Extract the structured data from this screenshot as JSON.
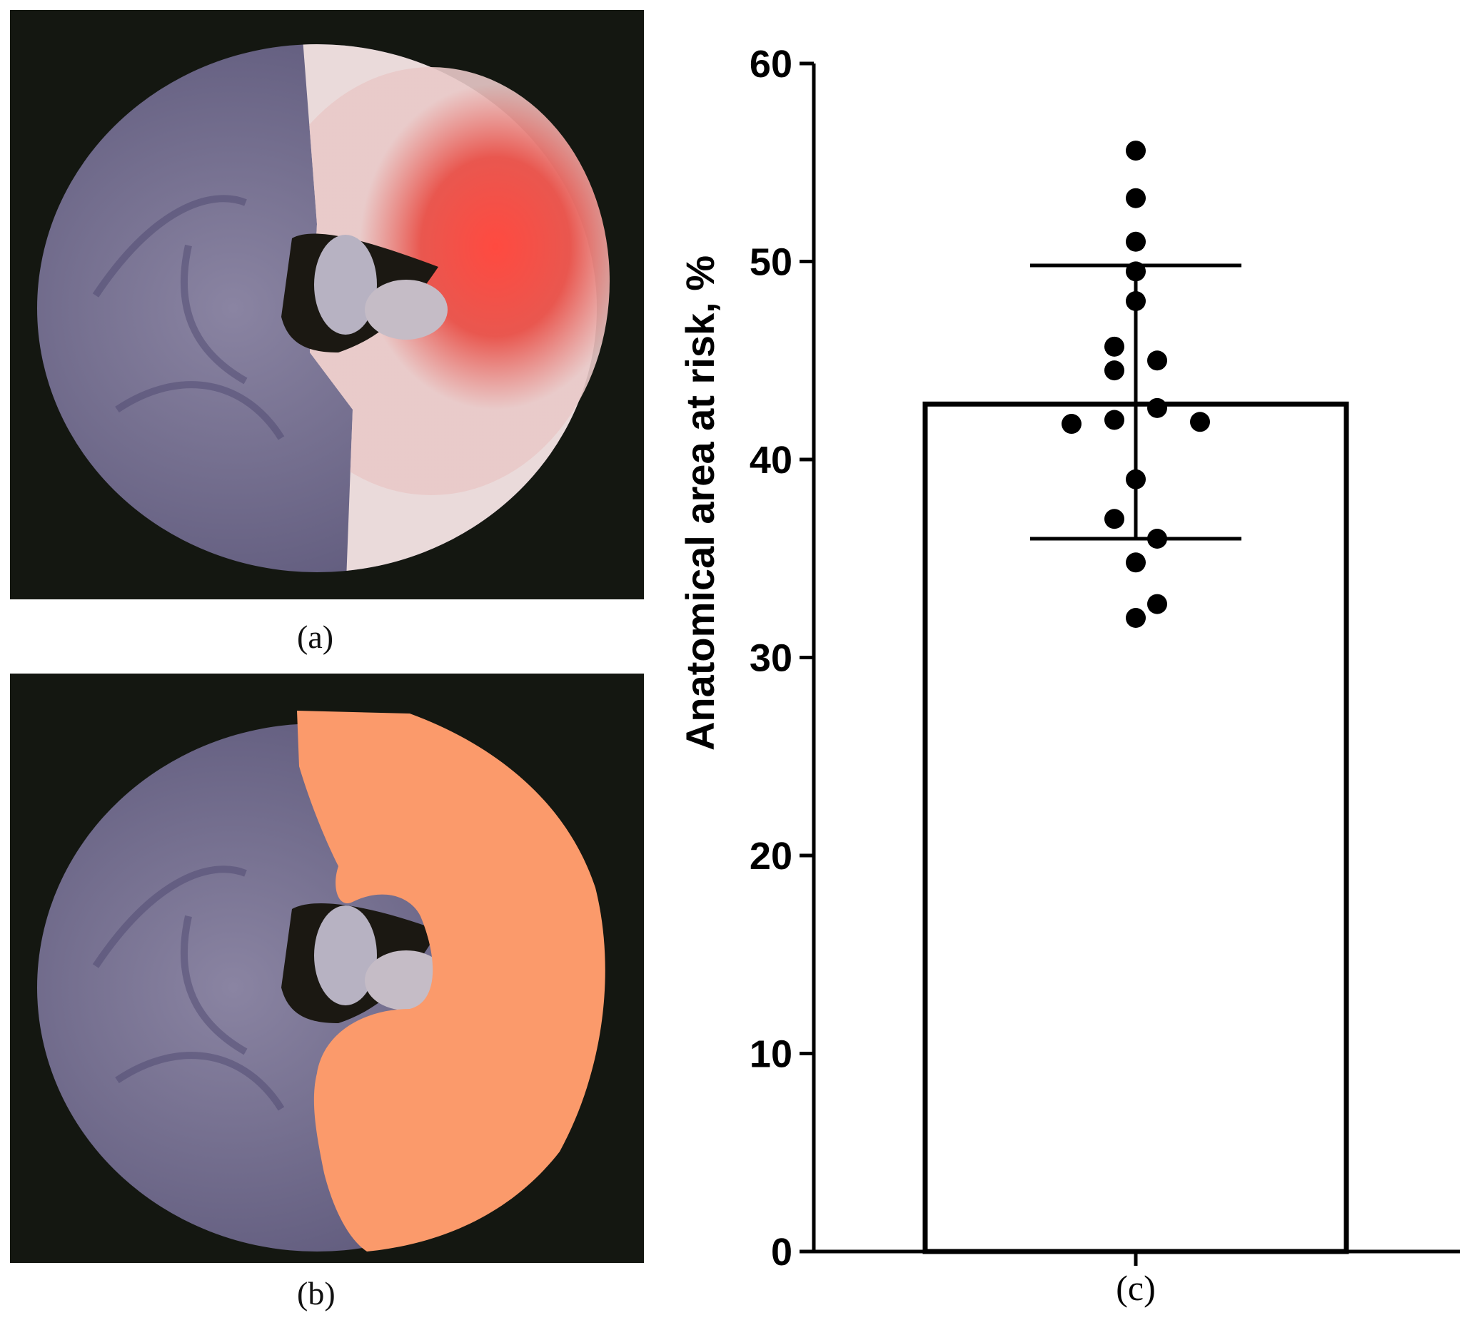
{
  "figure": {
    "panels": [
      {
        "label": "(a)",
        "description_icon": "heart-slice-photo-stained"
      },
      {
        "label": "(b)",
        "description_icon": "heart-slice-photo-segmented"
      }
    ],
    "colors": {
      "stain_red": "#f0453e",
      "segment_fill": "#fb9a6b",
      "tissue_blue": "#7a7596",
      "background": "#141711"
    }
  },
  "chart_data": {
    "type": "bar",
    "categories": [
      "(c)"
    ],
    "values": [
      42.8
    ],
    "error": {
      "lower": 36.0,
      "upper": 49.8
    },
    "points": [
      55.6,
      53.2,
      51.0,
      49.5,
      48.0,
      45.7,
      45.0,
      44.5,
      42.6,
      42.0,
      41.9,
      41.8,
      39.0,
      37.0,
      36.0,
      34.8,
      32.7,
      32.0
    ],
    "title": "",
    "xlabel": "(c)",
    "ylabel": "Anatomical area at risk, %",
    "ylim": [
      0,
      60
    ],
    "yticks": [
      0,
      10,
      20,
      30,
      40,
      50,
      60
    ],
    "grid": false,
    "colors": {
      "bar_fill": "#ffffff",
      "bar_stroke": "#000000",
      "points": "#000000"
    }
  }
}
